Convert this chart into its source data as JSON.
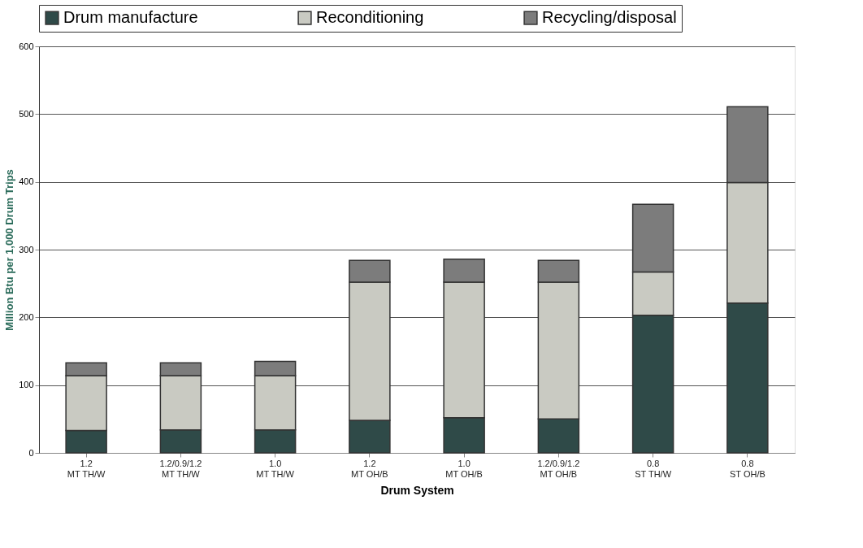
{
  "chart_data": {
    "type": "bar",
    "stacked": true,
    "xlabel": "Drum System",
    "ylabel": "Million Btu per 1,000 Drum Trips",
    "categories": [
      "1.2\nMT TH/W",
      "1.2/0.9/1.2\nMT TH/W",
      "1.0\nMT TH/W",
      "1.2\nMT OH/B",
      "1.0\nMT OH/B",
      "1.2/0.9/1.2\nMT OH/B",
      "0.8\nST TH/W",
      "0.8\nST OH/B"
    ],
    "series": [
      {
        "name": "Drum manufacture",
        "color": "#2f4a48",
        "values": [
          33,
          34,
          34,
          48,
          52,
          50,
          203,
          221
        ]
      },
      {
        "name": "Reconditioning",
        "color": "#c9cac2",
        "values": [
          81,
          80,
          80,
          204,
          200,
          202,
          64,
          178
        ]
      },
      {
        "name": "Recycling/disposal",
        "color": "#7c7c7c",
        "values": [
          19,
          19,
          21,
          32,
          34,
          32,
          100,
          112
        ]
      }
    ],
    "ylim": [
      0,
      600
    ],
    "yticks": [
      0,
      100,
      200,
      300,
      400,
      500,
      600
    ],
    "grid": "y",
    "legend": "top"
  }
}
